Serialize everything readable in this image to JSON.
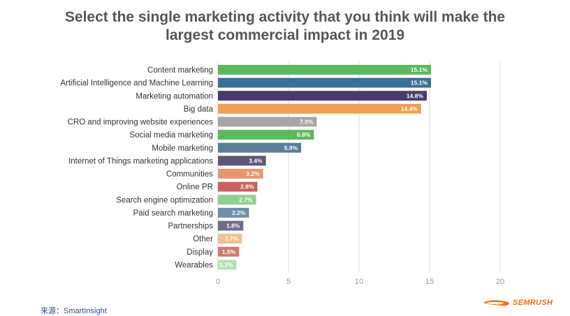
{
  "chart_data": {
    "type": "bar",
    "orientation": "horizontal",
    "title": "Select the single marketing activity that you think will make the largest commercial impact in 2019",
    "categories": [
      "Content marketing",
      "Artificial Intelligence and Machine Learning",
      "Marketing automation",
      "Big data",
      "CRO and improving website experiences",
      "Social media marketing",
      "Mobile marketing",
      "Internet of Things marketing applications",
      "Communities",
      "Online PR",
      "Search engine optimization",
      "Paid search marketing",
      "Partnerships",
      "Other",
      "Display",
      "Wearables"
    ],
    "values": [
      15.1,
      15.1,
      14.8,
      14.4,
      7.0,
      6.8,
      5.9,
      3.4,
      3.2,
      2.8,
      2.7,
      2.2,
      1.8,
      1.7,
      1.5,
      1.3
    ],
    "value_labels": [
      "15.1%",
      "15.1%",
      "14.8%",
      "14.4%",
      "7.0%",
      "6.8%",
      "5.9%",
      "3.4%",
      "3.2%",
      "2.8%",
      "2.7%",
      "2.2%",
      "1.8%",
      "1.7%",
      "1.5%",
      "1.3%"
    ],
    "colors": [
      "#5cb85c",
      "#3a6f96",
      "#4a3a6b",
      "#f0a050",
      "#a6a6a6",
      "#5cb85c",
      "#5a7d99",
      "#5e5577",
      "#e8956a",
      "#c86060",
      "#8fcf8f",
      "#6f8faa",
      "#706a8c",
      "#f0c090",
      "#d07a70",
      "#b6dfb6"
    ],
    "xlim": [
      0,
      20
    ],
    "xticks": [
      "0",
      "5",
      "10",
      "15",
      "20"
    ],
    "grid": true
  },
  "title_lines": [
    "Select the single marketing activity that you think will make the",
    "largest commercial impact in 2019"
  ],
  "source_text": "来源：SmartInsight",
  "logo": {
    "text": "SEMRUSH",
    "color": "#ff6a00"
  }
}
